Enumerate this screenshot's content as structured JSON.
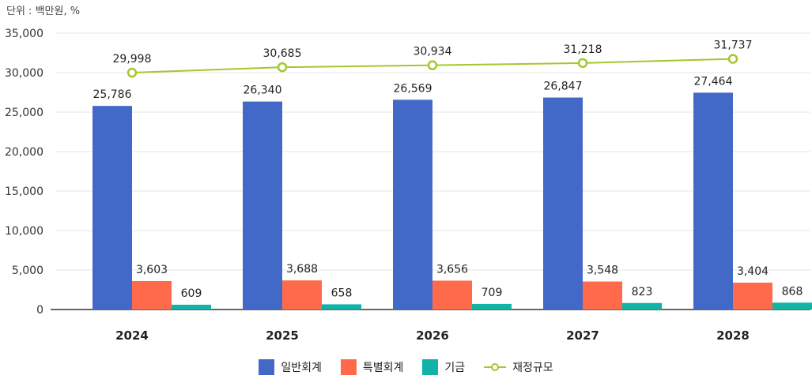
{
  "unit_label": "단위 : 백만원, %",
  "chart_data": {
    "type": "bar",
    "categories": [
      "2024",
      "2025",
      "2026",
      "2027",
      "2028"
    ],
    "series": [
      {
        "name": "일반회계",
        "kind": "bar",
        "color": "#4369c8",
        "values": [
          25786,
          26340,
          26569,
          26847,
          27464
        ]
      },
      {
        "name": "특별회계",
        "kind": "bar",
        "color": "#ff6b4a",
        "values": [
          3603,
          3688,
          3656,
          3548,
          3404
        ]
      },
      {
        "name": "기금",
        "kind": "bar",
        "color": "#10b3a6",
        "values": [
          609,
          658,
          709,
          823,
          868
        ]
      },
      {
        "name": "재정규모",
        "kind": "line",
        "color": "#a3c82d",
        "values": [
          29998,
          30685,
          30934,
          31218,
          31737
        ]
      }
    ],
    "ylim": [
      0,
      35000
    ],
    "yticks": [
      "0",
      "5,000",
      "10,000",
      "15,000",
      "20,000",
      "25,000",
      "30,000",
      "35,000"
    ],
    "grid": true,
    "legend_position": "bottom-center"
  }
}
